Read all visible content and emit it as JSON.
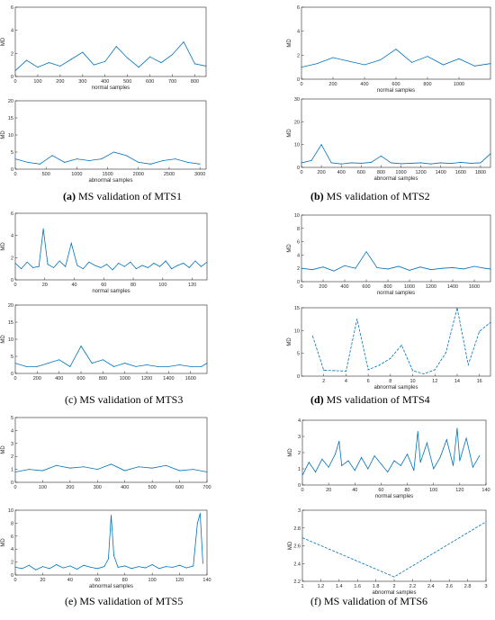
{
  "captions": [
    {
      "tag": "(a)",
      "text": "MS validation of MTS1",
      "bold": true
    },
    {
      "tag": "(b)",
      "text": "MS validation of MTS2",
      "bold": true
    },
    {
      "tag": "(c)",
      "text": "MS validation of MTS3",
      "bold": false
    },
    {
      "tag": "(d)",
      "text": "MS validation of MTS4",
      "bold": true
    },
    {
      "tag": "(e)",
      "text": "MS validation of MTS5",
      "bold": false
    },
    {
      "tag": "(f)",
      "text": "MS validation of MTS6",
      "bold": false
    }
  ],
  "chart_data": [
    {
      "type": "line",
      "title": "",
      "xlabel": "normal samples",
      "ylabel": "MD",
      "xlim": [
        0,
        850
      ],
      "ylim": [
        0,
        6
      ],
      "xticks": [
        0,
        100,
        200,
        300,
        400,
        500,
        600,
        700,
        800
      ],
      "yticks": [
        0,
        2,
        4,
        6
      ],
      "x": [
        0,
        50,
        100,
        150,
        200,
        250,
        300,
        350,
        400,
        450,
        500,
        550,
        600,
        650,
        700,
        750,
        800,
        850
      ],
      "series": [
        {
          "values": [
            0.5,
            1.4,
            0.8,
            1.2,
            0.9,
            1.5,
            2.1,
            1.0,
            1.3,
            2.6,
            1.6,
            0.8,
            1.7,
            1.2,
            1.9,
            3.0,
            1.1,
            0.9
          ]
        }
      ]
    },
    {
      "type": "line",
      "title": "",
      "xlabel": "abnormal samples",
      "ylabel": "MD",
      "xlim": [
        0,
        3100
      ],
      "ylim": [
        0,
        20
      ],
      "xticks": [
        0,
        500,
        1000,
        1500,
        2000,
        2500,
        3000
      ],
      "yticks": [
        0,
        5,
        10,
        15,
        20
      ],
      "x": [
        0,
        200,
        400,
        600,
        800,
        1000,
        1200,
        1400,
        1600,
        1800,
        2000,
        2200,
        2400,
        2600,
        2800,
        3000
      ],
      "series": [
        {
          "values": [
            3,
            2,
            1.5,
            4,
            2,
            3,
            2.5,
            3,
            5,
            4,
            2,
            1.5,
            2.5,
            3,
            2,
            1.5
          ]
        }
      ]
    },
    {
      "type": "line",
      "title": "",
      "xlabel": "normal samples",
      "ylabel": "MD",
      "xlim": [
        0,
        1200
      ],
      "ylim": [
        0,
        6
      ],
      "xticks": [
        0,
        200,
        400,
        600,
        800,
        1000
      ],
      "yticks": [
        0,
        2,
        4,
        6
      ],
      "x": [
        0,
        100,
        200,
        300,
        400,
        500,
        600,
        700,
        800,
        900,
        1000,
        1100,
        1200
      ],
      "series": [
        {
          "values": [
            1.0,
            1.3,
            1.8,
            1.5,
            1.2,
            1.6,
            2.5,
            1.4,
            1.9,
            1.2,
            1.7,
            1.1,
            1.3
          ]
        }
      ]
    },
    {
      "type": "line",
      "title": "",
      "xlabel": "abnormal samples",
      "ylabel": "MD",
      "xlim": [
        0,
        1900
      ],
      "ylim": [
        0,
        30
      ],
      "xticks": [
        0,
        200,
        400,
        600,
        800,
        1000,
        1200,
        1400,
        1600,
        1800
      ],
      "yticks": [
        0,
        10,
        20,
        30
      ],
      "x": [
        0,
        100,
        200,
        300,
        400,
        500,
        600,
        700,
        800,
        900,
        1000,
        1100,
        1200,
        1300,
        1400,
        1500,
        1600,
        1700,
        1800,
        1900
      ],
      "series": [
        {
          "values": [
            2,
            3,
            10,
            2,
            1.5,
            2,
            1.8,
            2.2,
            5,
            2,
            1.6,
            1.8,
            2,
            1.5,
            2,
            1.7,
            2.2,
            1.8,
            2,
            6
          ]
        }
      ]
    },
    {
      "type": "line",
      "title": "",
      "xlabel": "normal samples",
      "ylabel": "MD",
      "xlim": [
        0,
        130
      ],
      "ylim": [
        0,
        6
      ],
      "xticks": [
        0,
        20,
        40,
        60,
        80,
        100,
        120
      ],
      "yticks": [
        0,
        2,
        4,
        6
      ],
      "x": [
        0,
        4,
        8,
        12,
        16,
        19,
        22,
        26,
        30,
        34,
        38,
        42,
        46,
        50,
        54,
        58,
        62,
        66,
        70,
        74,
        78,
        82,
        86,
        90,
        94,
        98,
        102,
        106,
        110,
        114,
        118,
        122,
        126,
        130
      ],
      "series": [
        {
          "values": [
            1.5,
            1.0,
            1.6,
            1.1,
            1.2,
            4.6,
            1.4,
            1.1,
            1.7,
            1.2,
            3.3,
            1.3,
            1.0,
            1.6,
            1.3,
            1.1,
            1.4,
            0.9,
            1.5,
            1.2,
            1.6,
            1.0,
            1.3,
            1.1,
            1.5,
            1.2,
            1.7,
            1.0,
            1.3,
            1.5,
            1.1,
            1.7,
            1.2,
            1.6
          ]
        }
      ]
    },
    {
      "type": "line",
      "title": "",
      "xlabel": "",
      "ylabel": "MD",
      "xlim": [
        0,
        1750
      ],
      "ylim": [
        0,
        20
      ],
      "xticks": [
        0,
        200,
        400,
        600,
        800,
        1000,
        1200,
        1400,
        1600
      ],
      "yticks": [
        0,
        5,
        10,
        15,
        20
      ],
      "x": [
        0,
        100,
        200,
        300,
        400,
        500,
        600,
        700,
        800,
        900,
        1000,
        1100,
        1200,
        1300,
        1400,
        1500,
        1600,
        1700,
        1750
      ],
      "series": [
        {
          "values": [
            3,
            2,
            2,
            3,
            4,
            2,
            8,
            3,
            4,
            2,
            3,
            2,
            2.5,
            2,
            2,
            2.5,
            2,
            2,
            3
          ]
        }
      ]
    },
    {
      "type": "line",
      "title": "",
      "xlabel": "normal samples",
      "ylabel": "MD",
      "xlim": [
        0,
        1750
      ],
      "ylim": [
        0,
        10
      ],
      "xticks": [
        0,
        200,
        400,
        600,
        800,
        1000,
        1200,
        1400,
        1600
      ],
      "yticks": [
        0,
        2,
        4,
        6,
        8,
        10
      ],
      "x": [
        0,
        100,
        200,
        300,
        400,
        500,
        600,
        700,
        800,
        900,
        1000,
        1100,
        1200,
        1300,
        1400,
        1500,
        1600,
        1700,
        1750
      ],
      "series": [
        {
          "values": [
            2,
            1.8,
            2.2,
            1.6,
            2.4,
            2.0,
            4.5,
            2.1,
            1.9,
            2.3,
            1.7,
            2.2,
            1.8,
            2.0,
            2.1,
            1.9,
            2.3,
            2.0,
            1.9
          ]
        }
      ]
    },
    {
      "type": "line",
      "title": "",
      "xlabel": "abnormal samples",
      "ylabel": "MD",
      "xlim": [
        0,
        17
      ],
      "ylim": [
        0,
        15
      ],
      "xticks": [
        2,
        4,
        6,
        8,
        10,
        12,
        14,
        16
      ],
      "yticks": [
        0,
        5,
        10,
        15
      ],
      "x": [
        1,
        2,
        3,
        4,
        5,
        6,
        7,
        8,
        9,
        10,
        11,
        12,
        13,
        14,
        15,
        16,
        17
      ],
      "series": [
        {
          "values": [
            8.8,
            1.3,
            1.2,
            1.1,
            12.5,
            1.4,
            2.4,
            3.9,
            6.8,
            1.2,
            0.5,
            1.4,
            5.2,
            15,
            2.5,
            9.8,
            11.8
          ]
        }
      ]
    },
    {
      "type": "line",
      "title": "",
      "xlabel": "",
      "ylabel": "MD",
      "xlim": [
        0,
        700
      ],
      "ylim": [
        0,
        5
      ],
      "xticks": [
        0,
        100,
        200,
        300,
        400,
        500,
        600,
        700
      ],
      "yticks": [
        0,
        1,
        2,
        3,
        4,
        5
      ],
      "x": [
        0,
        50,
        100,
        150,
        200,
        250,
        300,
        350,
        400,
        450,
        500,
        550,
        600,
        650,
        700
      ],
      "series": [
        {
          "values": [
            0.8,
            1.0,
            0.9,
            1.3,
            1.1,
            1.2,
            1.0,
            1.4,
            0.9,
            1.2,
            1.1,
            1.3,
            0.9,
            1.0,
            0.8
          ]
        }
      ]
    },
    {
      "type": "line",
      "title": "",
      "xlabel": "abnormal samples",
      "ylabel": "MD",
      "xlim": [
        0,
        140
      ],
      "ylim": [
        0,
        10
      ],
      "xticks": [
        0,
        20,
        40,
        60,
        80,
        100,
        120,
        140
      ],
      "yticks": [
        0,
        2,
        4,
        6,
        8,
        10
      ],
      "x": [
        0,
        5,
        10,
        15,
        20,
        25,
        30,
        35,
        40,
        45,
        50,
        55,
        60,
        65,
        68,
        70,
        72,
        75,
        80,
        85,
        90,
        95,
        100,
        105,
        110,
        115,
        120,
        125,
        130,
        133,
        135,
        137
      ],
      "series": [
        {
          "values": [
            1.2,
            1.0,
            1.5,
            0.8,
            1.3,
            1.0,
            1.6,
            1.1,
            1.4,
            0.9,
            1.5,
            1.2,
            1.0,
            1.3,
            2.5,
            9.2,
            3.0,
            1.2,
            1.4,
            1.0,
            1.3,
            1.1,
            1.6,
            1.0,
            1.3,
            1.2,
            1.5,
            1.1,
            1.4,
            8.0,
            9.5,
            1.8
          ]
        }
      ]
    },
    {
      "type": "line",
      "title": "",
      "xlabel": "normal samples",
      "ylabel": "MD",
      "xlim": [
        0,
        140
      ],
      "ylim": [
        0,
        4
      ],
      "xticks": [
        0,
        20,
        40,
        60,
        80,
        100,
        120,
        140
      ],
      "yticks": [
        0,
        1,
        2,
        3,
        4
      ],
      "x": [
        0,
        5,
        10,
        15,
        20,
        25,
        28,
        30,
        35,
        40,
        45,
        50,
        55,
        60,
        65,
        70,
        75,
        80,
        85,
        88,
        90,
        95,
        100,
        105,
        110,
        115,
        118,
        120,
        125,
        130,
        135
      ],
      "series": [
        {
          "values": [
            0.6,
            1.4,
            0.8,
            1.6,
            1.1,
            1.9,
            2.7,
            1.2,
            1.5,
            0.9,
            1.7,
            1.0,
            1.8,
            1.3,
            0.8,
            1.5,
            1.2,
            1.9,
            0.9,
            3.3,
            1.4,
            2.6,
            1.0,
            1.7,
            2.8,
            1.2,
            3.5,
            1.5,
            2.9,
            1.1,
            1.8
          ]
        }
      ]
    },
    {
      "type": "line",
      "title": "",
      "xlabel": "abnormal samples",
      "ylabel": "MD",
      "xlim": [
        1,
        3
      ],
      "ylim": [
        2.2,
        3
      ],
      "xticks": [
        1,
        1.2,
        1.4,
        1.6,
        1.8,
        2,
        2.2,
        2.4,
        2.6,
        2.8,
        3
      ],
      "yticks": [
        2.2,
        2.4,
        2.6,
        2.8,
        3
      ],
      "x": [
        1,
        2,
        3
      ],
      "series": [
        {
          "values": [
            2.69,
            2.25,
            2.87
          ]
        }
      ]
    }
  ]
}
